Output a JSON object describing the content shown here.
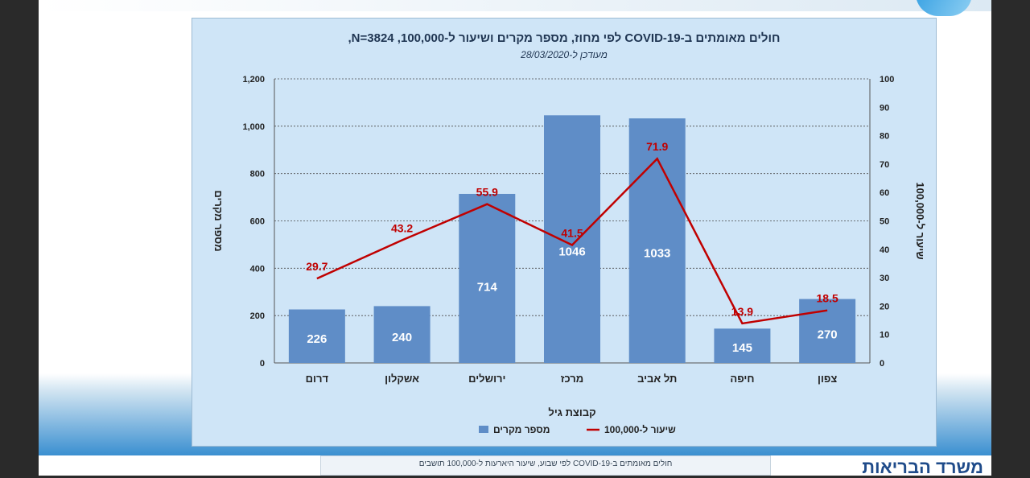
{
  "chart_data": {
    "type": "bar",
    "title": "חולים מאומתים ב-COVID-19 לפי מחוז, מספר מקרים ושיעור ל-100,000, N=3824,",
    "subtitle": "מעודכן ל-28/03/2020",
    "categories": [
      "צפון",
      "חיפה",
      "תל אביב",
      "מרכז",
      "ירושלים",
      "אשקלון",
      "דרום"
    ],
    "series": [
      {
        "name": "מספר מקרים",
        "type": "bar",
        "axis": "left",
        "color": "#5f8dc7",
        "values": [
          270,
          145,
          1033,
          1046,
          714,
          240,
          226
        ]
      },
      {
        "name": "שיעור ל-100,000",
        "type": "line",
        "axis": "right",
        "color": "#c00000",
        "values": [
          18.5,
          13.9,
          71.9,
          41.5,
          55.9,
          43.2,
          29.7
        ]
      }
    ],
    "xlabel": "קבוצת גיל",
    "ylabel": "מספר מקרים",
    "y2label": "שיעור ל-100,000",
    "ylim": [
      0,
      1200
    ],
    "y2lim": [
      0,
      100
    ],
    "yticks": [
      "0",
      "200",
      "400",
      "600",
      "800",
      "1,000",
      "1,200"
    ],
    "y2ticks": [
      "0",
      "10",
      "20",
      "30",
      "40",
      "50",
      "60",
      "70",
      "80",
      "90",
      "100"
    ],
    "grid": "dashed-horizontal",
    "legend": "bottom-center",
    "x_direction": "right-to-left"
  },
  "footer": {
    "next_caption": "חולים מאומתים ב-COVID-19 לפי שבוע, שיעור היארעות ל-100,000 תושבים",
    "ministry_text": "משרד הבריאות"
  }
}
